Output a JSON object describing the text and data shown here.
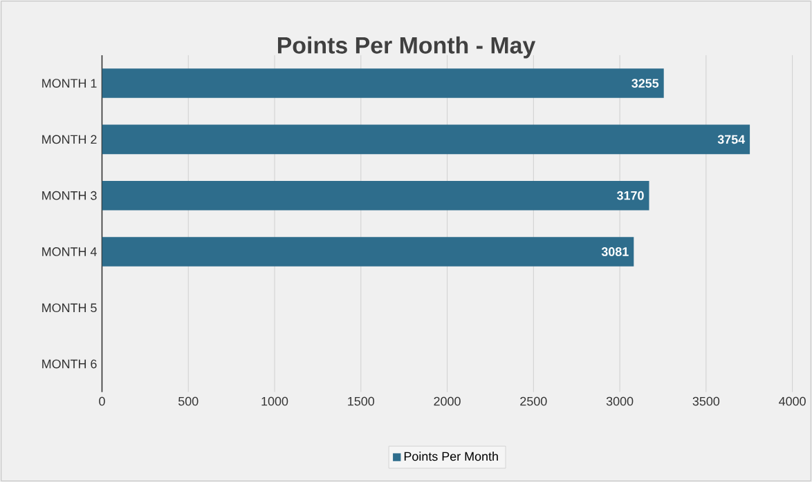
{
  "chart_data": {
    "type": "bar",
    "orientation": "horizontal",
    "title": "Points Per Month - May",
    "categories": [
      "MONTH 1",
      "MONTH 2",
      "MONTH 3",
      "MONTH 4",
      "MONTH 5",
      "MONTH 6"
    ],
    "series": [
      {
        "name": "Points Per Month",
        "color": "#2e6d8c",
        "values": [
          3255,
          3754,
          3170,
          3081,
          null,
          null
        ]
      }
    ],
    "xlim": [
      0,
      4000
    ],
    "xticks": [
      0,
      500,
      1000,
      1500,
      2000,
      2500,
      3000,
      3500,
      4000
    ],
    "grid": "x",
    "legend": "bottom",
    "data_labels": true
  }
}
